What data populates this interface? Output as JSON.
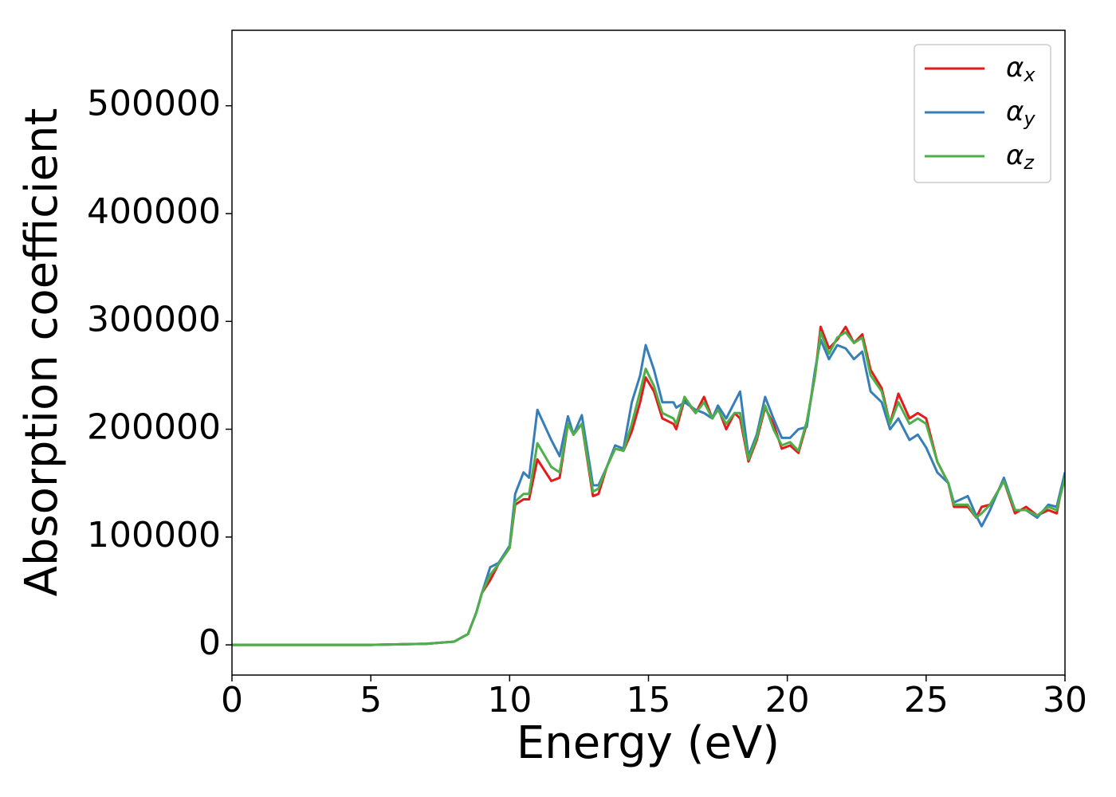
{
  "chart_data": {
    "type": "line",
    "xlabel": "Energy (eV)",
    "ylabel": "Absorption coefficient",
    "x": [
      0,
      5,
      7,
      8,
      8.5,
      8.8,
      9.0,
      9.3,
      9.6,
      10.0,
      10.2,
      10.5,
      10.7,
      11.0,
      11.5,
      11.8,
      12.1,
      12.3,
      12.6,
      13.0,
      13.2,
      13.5,
      13.8,
      14.1,
      14.4,
      14.7,
      14.9,
      15.2,
      15.5,
      15.9,
      16.0,
      16.3,
      16.7,
      17.0,
      17.3,
      17.5,
      17.8,
      18.1,
      18.3,
      18.6,
      18.9,
      19.2,
      19.5,
      19.8,
      20.1,
      20.4,
      20.7,
      21.0,
      21.2,
      21.5,
      21.8,
      22.1,
      22.4,
      22.7,
      23.0,
      23.4,
      23.7,
      24.0,
      24.4,
      24.7,
      25.0,
      25.4,
      25.8,
      26.0,
      26.5,
      26.8,
      27.0,
      27.3,
      27.8,
      28.2,
      28.6,
      29.0,
      29.4,
      29.7,
      30.0
    ],
    "series": [
      {
        "name": "αx",
        "color": "#e41a1c",
        "values": [
          0,
          0,
          1000,
          3000,
          10000,
          30000,
          48000,
          60000,
          75000,
          90000,
          130000,
          135000,
          135000,
          172000,
          152000,
          155000,
          205000,
          195000,
          205000,
          138000,
          140000,
          165000,
          182000,
          180000,
          198000,
          225000,
          248000,
          235000,
          210000,
          205000,
          200000,
          228000,
          215000,
          230000,
          210000,
          220000,
          200000,
          215000,
          210000,
          170000,
          190000,
          220000,
          205000,
          182000,
          185000,
          178000,
          205000,
          250000,
          295000,
          275000,
          283000,
          295000,
          280000,
          288000,
          255000,
          238000,
          205000,
          233000,
          210000,
          215000,
          210000,
          170000,
          150000,
          128000,
          128000,
          118000,
          128000,
          130000,
          152000,
          122000,
          128000,
          120000,
          125000,
          122000,
          160000
        ]
      },
      {
        "name": "αy",
        "color": "#377eb8",
        "values": [
          0,
          0,
          1000,
          3000,
          10000,
          30000,
          48000,
          72000,
          76000,
          92000,
          140000,
          160000,
          155000,
          218000,
          190000,
          175000,
          212000,
          195000,
          213000,
          148000,
          148000,
          165000,
          185000,
          182000,
          225000,
          250000,
          278000,
          255000,
          225000,
          225000,
          220000,
          225000,
          218000,
          215000,
          210000,
          222000,
          210000,
          225000,
          235000,
          175000,
          195000,
          230000,
          210000,
          192000,
          192000,
          200000,
          202000,
          255000,
          283000,
          265000,
          278000,
          275000,
          265000,
          272000,
          235000,
          225000,
          200000,
          210000,
          190000,
          195000,
          183000,
          160000,
          150000,
          132000,
          138000,
          120000,
          110000,
          125000,
          155000,
          125000,
          125000,
          118000,
          130000,
          128000,
          160000
        ]
      },
      {
        "name": "αz",
        "color": "#4daf4a",
        "values": [
          0,
          0,
          1000,
          3000,
          10000,
          30000,
          48000,
          65000,
          75000,
          90000,
          133000,
          140000,
          140000,
          187000,
          165000,
          160000,
          205000,
          195000,
          205000,
          142000,
          145000,
          165000,
          182000,
          180000,
          205000,
          235000,
          256000,
          240000,
          215000,
          210000,
          205000,
          230000,
          215000,
          225000,
          210000,
          218000,
          205000,
          215000,
          215000,
          172000,
          192000,
          222000,
          200000,
          185000,
          188000,
          180000,
          207000,
          250000,
          290000,
          270000,
          285000,
          290000,
          280000,
          285000,
          250000,
          235000,
          205000,
          225000,
          205000,
          210000,
          205000,
          170000,
          150000,
          130000,
          130000,
          118000,
          122000,
          130000,
          152000,
          125000,
          125000,
          120000,
          128000,
          125000,
          155000
        ]
      }
    ],
    "xlim": [
      0,
      30
    ],
    "xticks": [
      0,
      5,
      10,
      15,
      20,
      25,
      30
    ],
    "ylim": [
      -28000,
      570000
    ],
    "yticks": [
      0,
      100000,
      200000,
      300000,
      400000,
      500000
    ],
    "legend": "upper right"
  }
}
